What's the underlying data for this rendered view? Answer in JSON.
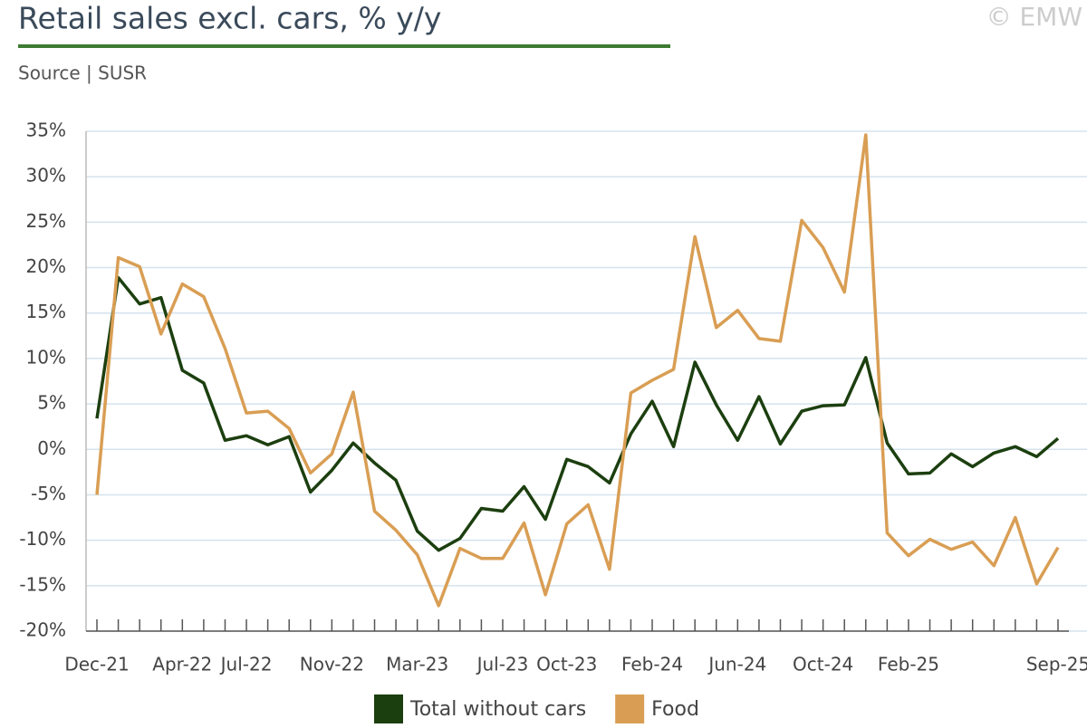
{
  "chart_data": {
    "type": "line",
    "title": "Retail sales excl. cars, % y/y",
    "subtitle": "Source | SUSR",
    "credit": "© EMW",
    "categories": [
      "Dec-21",
      null,
      null,
      null,
      "Apr-22",
      null,
      null,
      "Jul-22",
      null,
      null,
      null,
      "Nov-22",
      null,
      null,
      null,
      "Mar-23",
      null,
      null,
      null,
      "Jul-23",
      null,
      null,
      "Oct-23",
      null,
      null,
      null,
      "Feb-24",
      null,
      null,
      null,
      "Jun-24",
      null,
      null,
      null,
      "Oct-24",
      null,
      null,
      null,
      "Feb-25",
      null,
      null,
      null,
      null,
      null,
      null,
      "Sep-25"
    ],
    "series": [
      {
        "name": "Total without cars",
        "color": "#1c3f0f",
        "values": [
          3.4,
          18.9,
          16,
          16.7,
          8.7,
          7.3,
          1,
          1.5,
          0.5,
          1.4,
          -4.7,
          -2.3,
          0.7,
          -1.5,
          -3.4,
          -9,
          -11.1,
          -9.8,
          -6.5,
          -6.8,
          -4.1,
          -7.7,
          -1.1,
          -1.9,
          -3.7,
          1.7,
          5.3,
          0.3,
          9.6,
          4.9,
          1,
          5.8,
          0.6,
          4.2,
          4.8,
          4.9,
          10.1,
          0.7,
          -2.7,
          -2.6,
          -0.5,
          -1.9,
          -0.4,
          0.3,
          -0.8,
          1.2
        ]
      },
      {
        "name": "Food",
        "color": "#d99e54",
        "values": [
          -5,
          21.1,
          20.1,
          12.7,
          18.2,
          16.8,
          11.1,
          4,
          4.2,
          2.3,
          -2.6,
          -0.5,
          6.3,
          -6.8,
          -8.9,
          -11.6,
          -17.2,
          -10.9,
          -12,
          -12,
          -8.1,
          -16,
          -8.2,
          -6.1,
          -13.2,
          6.2,
          7.6,
          8.8,
          23.4,
          13.4,
          15.3,
          12.2,
          11.9,
          25.2,
          22.2,
          17.3,
          34.6,
          -9.2,
          -11.7,
          -9.9,
          -11,
          -10.2,
          -12.8,
          -7.5,
          -14.8,
          -10.8
        ]
      }
    ],
    "ylim": [
      -20,
      35
    ],
    "yticks": [
      {
        "value": -20,
        "label": "-20%"
      },
      {
        "value": -15,
        "label": "-15%"
      },
      {
        "value": -10,
        "label": "-10%"
      },
      {
        "value": -5,
        "label": "-5%"
      },
      {
        "value": 0,
        "label": "0%"
      },
      {
        "value": 5,
        "label": "5%"
      },
      {
        "value": 10,
        "label": "10%"
      },
      {
        "value": 15,
        "label": "15%"
      },
      {
        "value": 20,
        "label": "20%"
      },
      {
        "value": 25,
        "label": "25%"
      },
      {
        "value": 30,
        "label": "30%"
      },
      {
        "value": 35,
        "label": "35%"
      }
    ],
    "grid": true,
    "legend": "bottom"
  }
}
